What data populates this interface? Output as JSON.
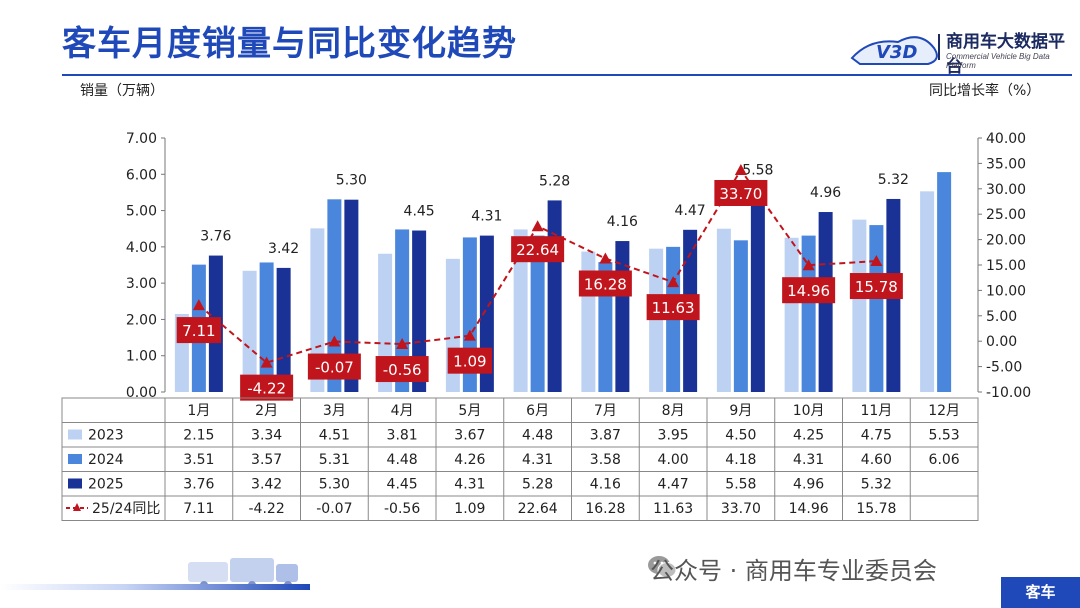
{
  "header": {
    "title": "客车月度销量与同比变化趋势",
    "logo_name": "商用车大数据平台",
    "logo_sub": "Commercial Vehicle Big Data Platform",
    "logo_mark": "V3D"
  },
  "chart_data": {
    "type": "bar",
    "ylabel": "销量（万辆）",
    "y2label": "同比增长率（%）",
    "ylim": [
      0,
      7
    ],
    "y2lim": [
      -10,
      40
    ],
    "yticks": [
      "0.00",
      "1.00",
      "2.00",
      "3.00",
      "4.00",
      "5.00",
      "6.00",
      "7.00"
    ],
    "y2ticks": [
      "-10.00",
      "-5.00",
      "0.00",
      "5.00",
      "10.00",
      "15.00",
      "20.00",
      "25.00",
      "30.00",
      "35.00",
      "40.00"
    ],
    "categories": [
      "1月",
      "2月",
      "3月",
      "4月",
      "5月",
      "6月",
      "7月",
      "8月",
      "9月",
      "10月",
      "11月",
      "12月"
    ],
    "series": [
      {
        "name": "2023",
        "kind": "bar",
        "color": "#bdd1f2",
        "values": [
          2.15,
          3.34,
          4.51,
          3.81,
          3.67,
          4.48,
          3.87,
          3.95,
          4.5,
          4.25,
          4.75,
          5.53
        ],
        "cells": [
          "2.15",
          "3.34",
          "4.51",
          "3.81",
          "3.67",
          "4.48",
          "3.87",
          "3.95",
          "4.50",
          "4.25",
          "4.75",
          "5.53"
        ]
      },
      {
        "name": "2024",
        "kind": "bar",
        "color": "#4a86db",
        "values": [
          3.51,
          3.57,
          5.31,
          4.48,
          4.26,
          4.31,
          3.58,
          4.0,
          4.18,
          4.31,
          4.6,
          6.06
        ],
        "cells": [
          "3.51",
          "3.57",
          "5.31",
          "4.48",
          "4.26",
          "4.31",
          "3.58",
          "4.00",
          "4.18",
          "4.31",
          "4.60",
          "6.06"
        ]
      },
      {
        "name": "2025",
        "kind": "bar",
        "color": "#1a3296",
        "values": [
          3.76,
          3.42,
          5.3,
          4.45,
          4.31,
          5.28,
          4.16,
          4.47,
          5.58,
          4.96,
          5.32,
          null
        ],
        "cells": [
          "3.76",
          "3.42",
          "5.30",
          "4.45",
          "4.31",
          "5.28",
          "4.16",
          "4.47",
          "5.58",
          "4.96",
          "5.32",
          ""
        ],
        "labels": [
          "3.76",
          "3.42",
          "5.30",
          "4.45",
          "4.31",
          "5.28",
          "4.16",
          "4.47",
          "5.58",
          "4.96",
          "5.32",
          ""
        ]
      },
      {
        "name": "25/24同比",
        "kind": "line",
        "axis": "right",
        "color": "#c0151c",
        "values": [
          7.11,
          -4.22,
          -0.07,
          -0.56,
          1.09,
          22.64,
          16.28,
          11.63,
          33.7,
          14.96,
          15.78,
          null
        ],
        "cells": [
          "7.11",
          "-4.22",
          "-0.07",
          "-0.56",
          "1.09",
          "22.64",
          "16.28",
          "11.63",
          "33.70",
          "14.96",
          "15.78",
          ""
        ],
        "labels": [
          "7.11",
          "-4.22",
          "-0.07",
          "-0.56",
          "1.09",
          "22.64",
          "16.28",
          "11.63",
          "33.70",
          "14.96",
          "15.78",
          ""
        ]
      }
    ],
    "grid": false,
    "legend": "table-bottom"
  },
  "footer": {
    "brand": "公众号 · 商用车专业委员会",
    "tag": "客车"
  }
}
